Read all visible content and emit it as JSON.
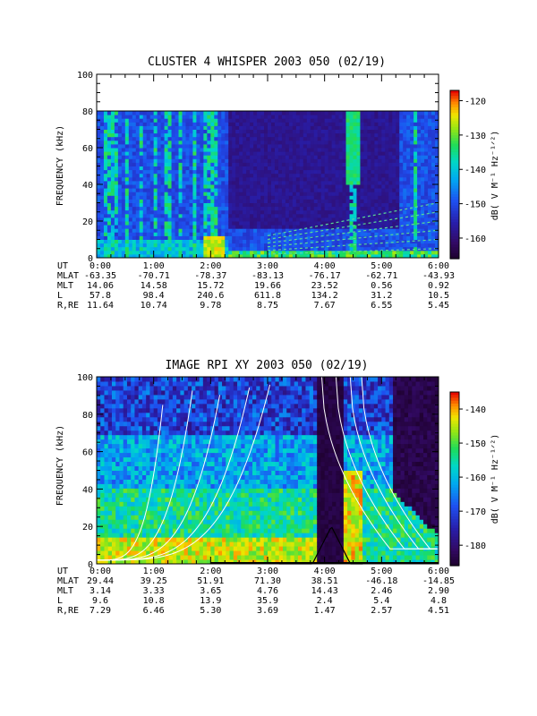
{
  "chart_data": [
    {
      "type": "heatmap",
      "title": "CLUSTER 4 WHISPER 2003 050 (02/19)",
      "ylabel": "FREQUENCY (kHz)",
      "ylim": [
        0,
        100
      ],
      "yticks": [
        "0",
        "20",
        "40",
        "60",
        "80",
        "100"
      ],
      "data_ymax": 80,
      "colorbar": {
        "label": "dB( V M⁻¹ Hz⁻¹ᐟ²)",
        "label_plain": "dB( V M^-1 Hz^-1/2)",
        "ticks": [
          "-120",
          "-130",
          "-140",
          "-150",
          "-160"
        ],
        "tick_values": [
          -120,
          -130,
          -140,
          -150,
          -160
        ],
        "range": [
          -166,
          -117
        ]
      },
      "ephemeris": {
        "row_labels": [
          "UT",
          "MLAT",
          "MLT",
          "L",
          "R,RE"
        ],
        "columns": [
          {
            "UT": "0:00",
            "MLAT": "-63.35",
            "MLT": "14.06",
            "L": "57.8",
            "R,RE": "11.64"
          },
          {
            "UT": "1:00",
            "MLAT": "-70.71",
            "MLT": "14.58",
            "L": "98.4",
            "R,RE": "10.74"
          },
          {
            "UT": "2:00",
            "MLAT": "-78.37",
            "MLT": "15.72",
            "L": "240.6",
            "R,RE": "9.78"
          },
          {
            "UT": "3:00",
            "MLAT": "-83.13",
            "MLT": "19.66",
            "L": "611.8",
            "R,RE": "8.75"
          },
          {
            "UT": "4:00",
            "MLAT": "-76.17",
            "MLT": "23.52",
            "L": "134.2",
            "R,RE": "7.67"
          },
          {
            "UT": "5:00",
            "MLAT": "-62.71",
            "MLT": "0.56",
            "L": "31.2",
            "R,RE": "6.55"
          },
          {
            "UT": "6:00",
            "MLAT": "-43.93",
            "MLT": "0.92",
            "L": "10.5",
            "R,RE": "5.45"
          }
        ]
      }
    },
    {
      "type": "heatmap",
      "title": "IMAGE RPI XY 2003 050 (02/19)",
      "ylabel": "FREQUENCY (kHz)",
      "ylim": [
        0,
        100
      ],
      "yticks": [
        "0",
        "20",
        "40",
        "60",
        "80",
        "100"
      ],
      "colorbar": {
        "label": "dB( V M⁻¹ Hz⁻¹ᐟ²)",
        "label_plain": "dB( V M^-1 Hz^-1/2)",
        "ticks": [
          "-140",
          "-150",
          "-160",
          "-170",
          "-180"
        ],
        "tick_values": [
          -140,
          -150,
          -160,
          -170,
          -180
        ],
        "range": [
          -186,
          -135
        ]
      },
      "ephemeris": {
        "row_labels": [
          "UT",
          "MLAT",
          "MLT",
          "L",
          "R,RE"
        ],
        "columns": [
          {
            "UT": "0:00",
            "MLAT": "29.44",
            "MLT": "3.14",
            "L": "9.6",
            "R,RE": "7.29"
          },
          {
            "UT": "1:00",
            "MLAT": "39.25",
            "MLT": "3.33",
            "L": "10.8",
            "R,RE": "6.46"
          },
          {
            "UT": "2:00",
            "MLAT": "51.91",
            "MLT": "3.65",
            "L": "13.9",
            "R,RE": "5.30"
          },
          {
            "UT": "3:00",
            "MLAT": "71.30",
            "MLT": "4.76",
            "L": "35.9",
            "R,RE": "3.69"
          },
          {
            "UT": "4:00",
            "MLAT": "38.51",
            "MLT": "14.43",
            "L": "2.4",
            "R,RE": "1.47"
          },
          {
            "UT": "5:00",
            "MLAT": "-46.18",
            "MLT": "2.46",
            "L": "5.4",
            "R,RE": "2.57"
          },
          {
            "UT": "6:00",
            "MLAT": "-14.85",
            "MLT": "2.90",
            "L": "4.8",
            "R,RE": "4.51"
          }
        ]
      }
    }
  ]
}
